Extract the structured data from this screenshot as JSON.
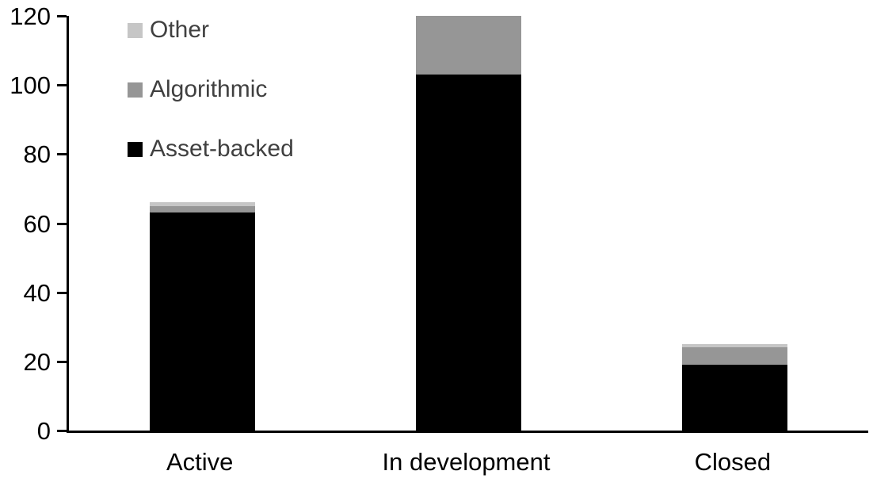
{
  "chart_data": {
    "type": "bar",
    "stacked": true,
    "title": "",
    "xlabel": "",
    "ylabel": "",
    "categories": [
      "Active",
      "In development",
      "Closed"
    ],
    "series": [
      {
        "name": "Asset-backed",
        "color": "#000000",
        "values": [
          63,
          103,
          19
        ]
      },
      {
        "name": "Algorithmic",
        "color": "#969696",
        "values": [
          2,
          17,
          5
        ]
      },
      {
        "name": "Other",
        "color": "#C6C6C6",
        "values": [
          1,
          0,
          1
        ]
      }
    ],
    "stack_totals": [
      66,
      120,
      25
    ],
    "ylim": [
      0,
      120
    ],
    "yticks": [
      0,
      20,
      40,
      60,
      80,
      100,
      120
    ],
    "grid": false,
    "legend_position": "top-left-inside",
    "legend_order_top_to_bottom": [
      "Other",
      "Algorithmic",
      "Asset-backed"
    ],
    "colors": {
      "background": "#FFFFFF",
      "axis": "#000000",
      "tick_label_text": "#000000",
      "category_label_text": "#000000",
      "legend_text": "#404040"
    }
  }
}
